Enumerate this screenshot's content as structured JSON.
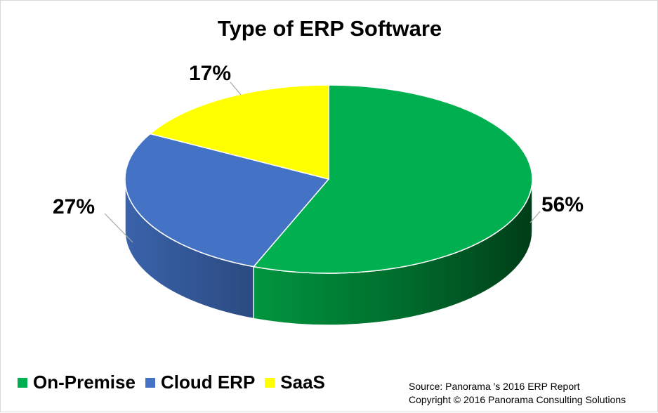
{
  "chart_data": {
    "type": "pie",
    "title": "Type of ERP Software",
    "categories": [
      "On-Premise",
      "Cloud ERP",
      "SaaS"
    ],
    "values": [
      56,
      27,
      17
    ],
    "labels": [
      "56%",
      "27%",
      "17%"
    ],
    "colors": [
      "#00b050",
      "#4472c4",
      "#ffff00"
    ],
    "legend_position": "bottom-left",
    "style": "3d-pie"
  },
  "source": {
    "line1": "Source: Panorama 's 2016 ERP Report",
    "line2": "Copyright © 2016 Panorama Consulting Solutions"
  }
}
